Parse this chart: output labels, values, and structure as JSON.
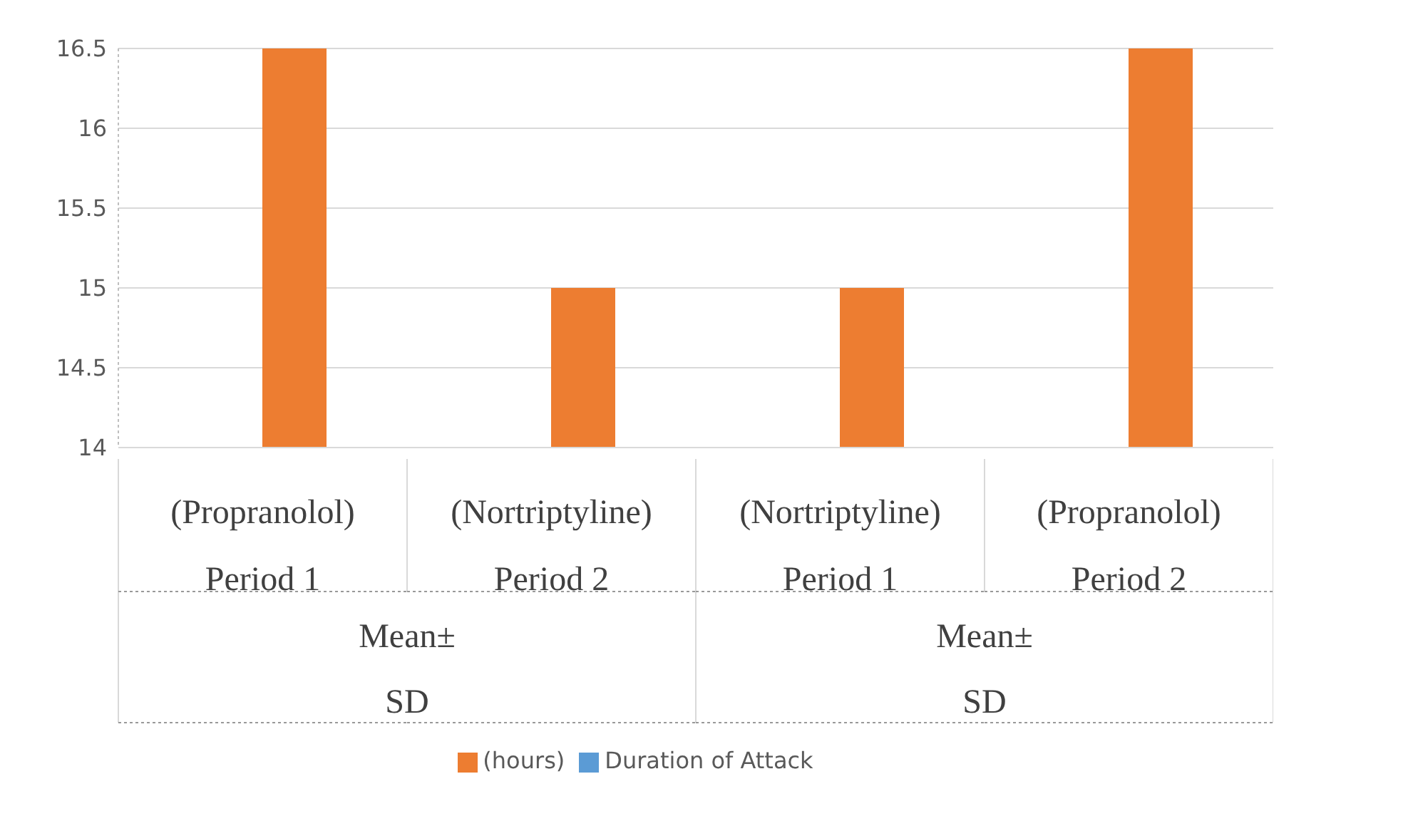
{
  "chart_data": {
    "type": "bar",
    "categories": [
      "(Propranolol) Period 1",
      "(Nortriptyline) Period 2",
      "(Nortriptyline) Period 1",
      "(Propranolol) Period 2"
    ],
    "series": [
      {
        "name": "Duration of Attack",
        "color": "#5b9bd5",
        "values": [
          null,
          null,
          null,
          null
        ]
      },
      {
        "name": "(hours)",
        "color": "#ed7d31",
        "values": [
          16.5,
          15,
          15,
          16.5
        ]
      }
    ],
    "ylim": [
      14,
      16.5
    ],
    "yticks": [
      14,
      14.5,
      15,
      15.5,
      16,
      16.5
    ],
    "annotations": [
      "Mean± SD",
      "Mean± SD"
    ],
    "grid": "y",
    "legend": "bottom"
  }
}
